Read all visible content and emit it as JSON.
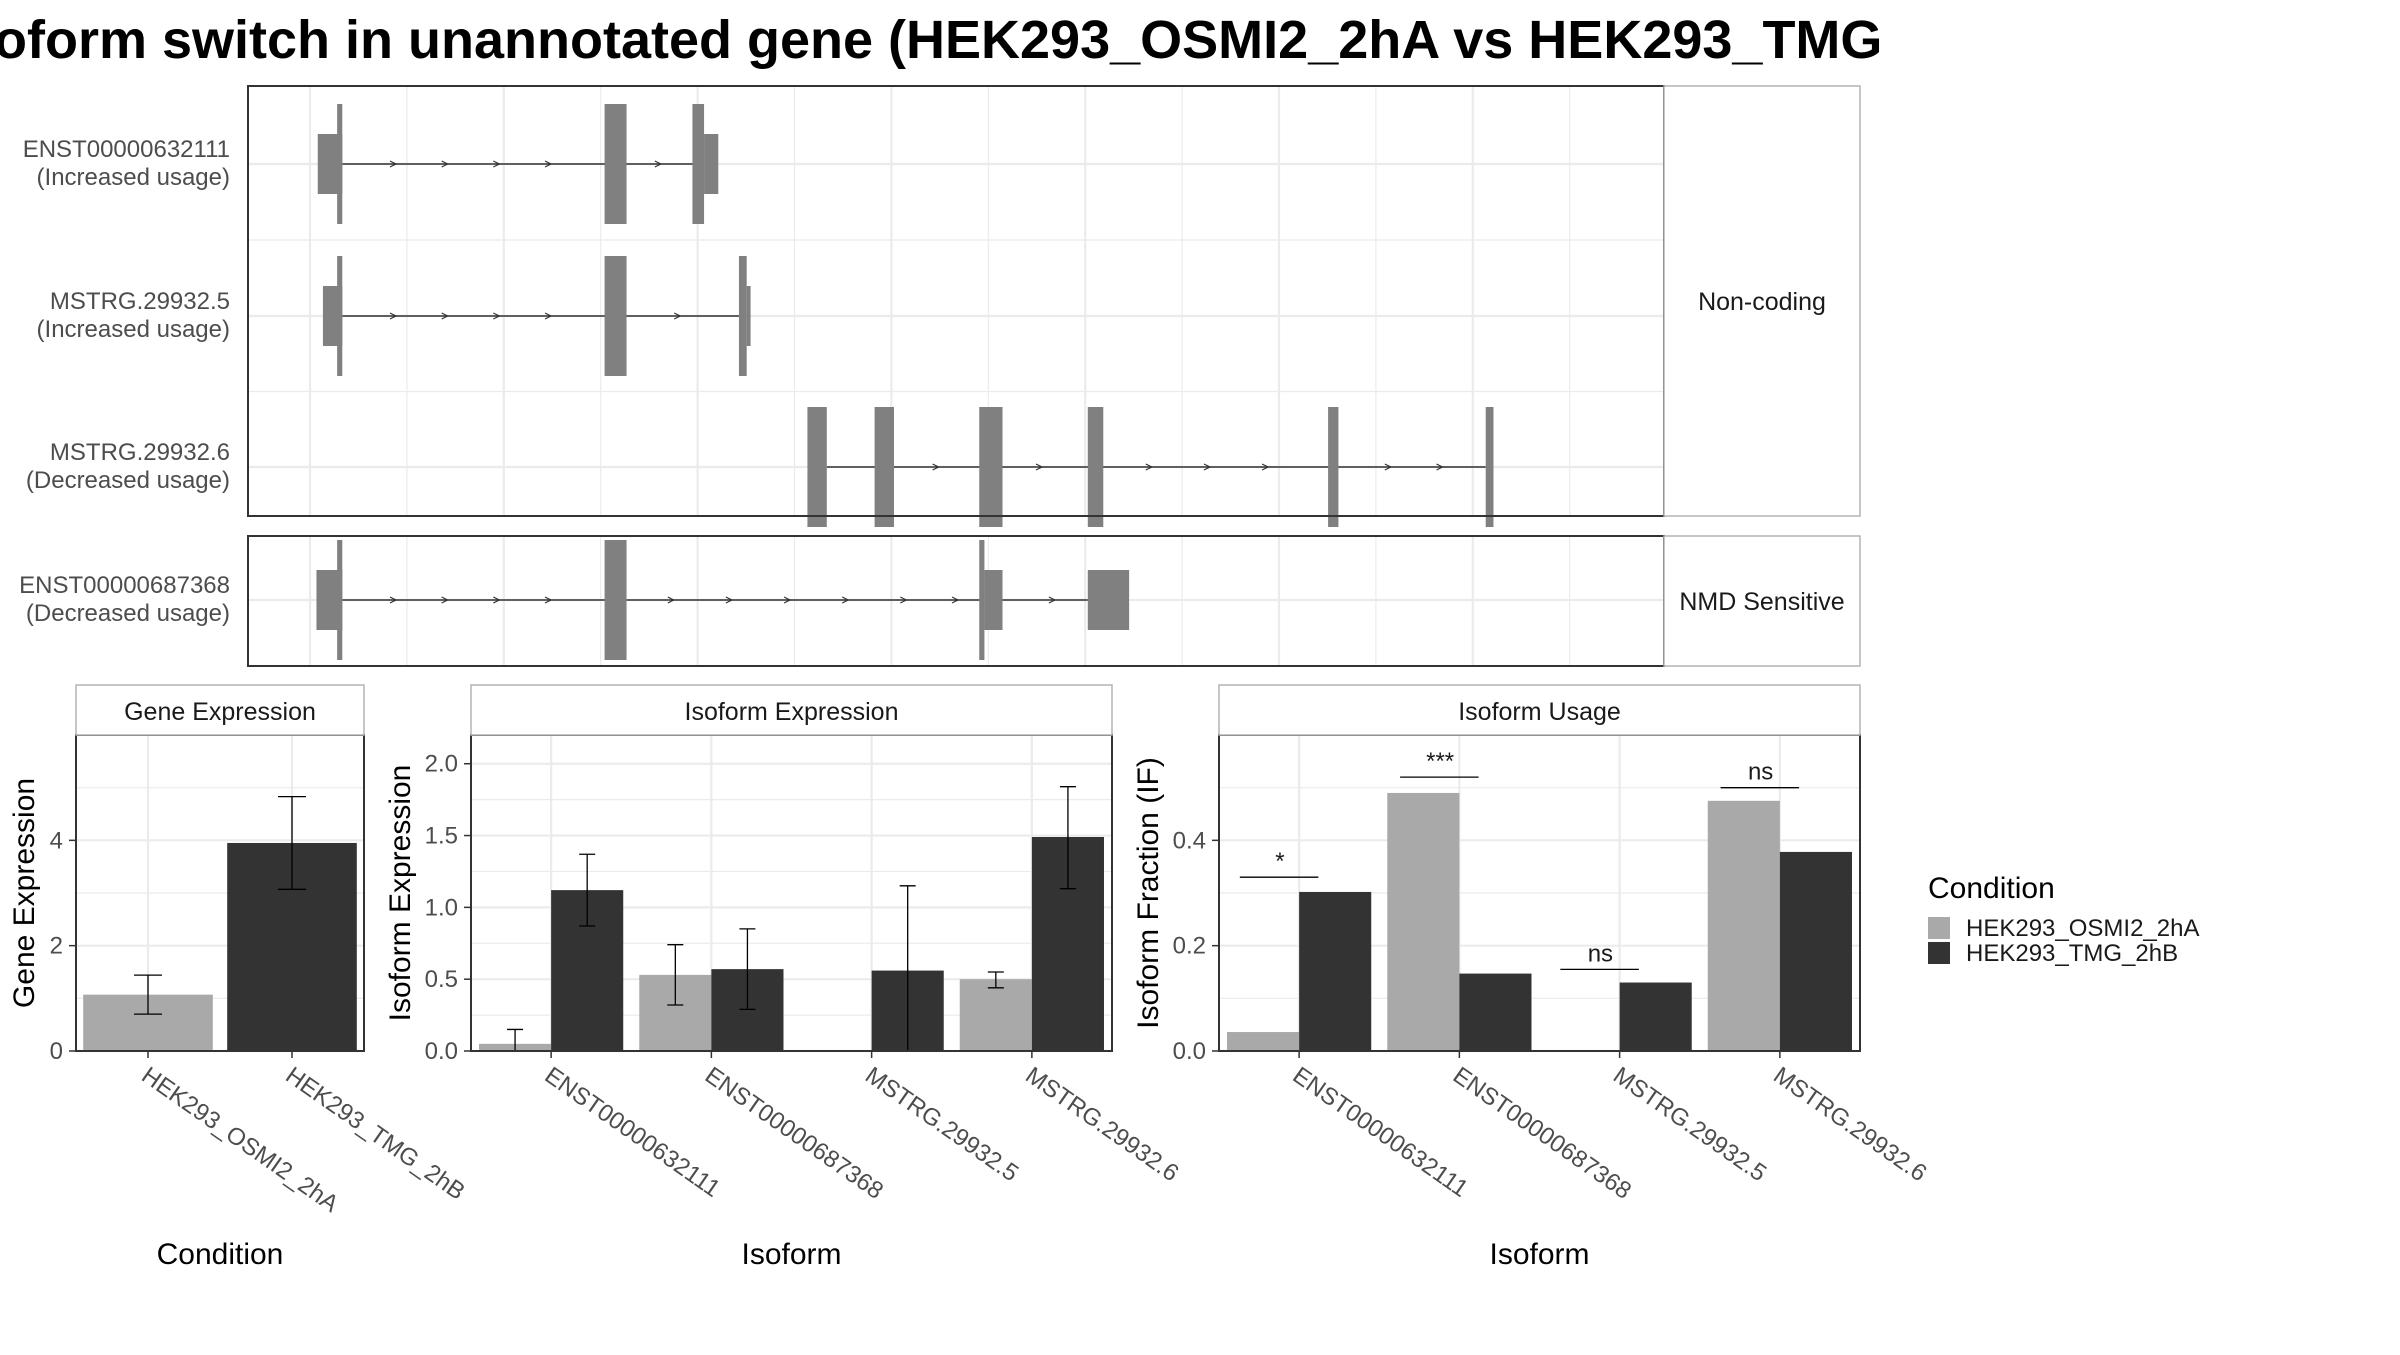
{
  "title": "oform switch in unannotated gene (HEK293_OSMI2_2hA vs HEK293_TMG",
  "colors": {
    "cond_a": "#A9A9A9",
    "cond_b": "#333333",
    "exon": "#808080",
    "grid": "#EBEBEB",
    "panel_border": "#333333",
    "strip_fill": "#FFFFFF",
    "text": "#1A1A1A",
    "axis_text": "#4D4D4D"
  },
  "structure": {
    "x_range": [
      0,
      100
    ],
    "groups": [
      {
        "label": "Non-coding",
        "transcripts": [
          {
            "name": "ENST00000632111",
            "usage": "(Increased usage)",
            "exons": [
              {
                "start": 0.6,
                "end": 2.5,
                "h": "utr"
              },
              {
                "start": 2.1,
                "end": 2.5,
                "h": "cds"
              },
              {
                "start": 22.8,
                "end": 24.5,
                "h": "cds"
              },
              {
                "start": 29.6,
                "end": 30.5,
                "h": "cds"
              },
              {
                "start": 30.5,
                "end": 31.6,
                "h": "utr"
              }
            ],
            "intron": [
              2.5,
              29.6
            ],
            "arrows": [
              6.5,
              10.5,
              14.5,
              18.5,
              27.0
            ]
          },
          {
            "name": "MSTRG.29932.5",
            "usage": "(Increased usage)",
            "exons": [
              {
                "start": 1.0,
                "end": 2.5,
                "h": "utr"
              },
              {
                "start": 2.1,
                "end": 2.5,
                "h": "cds"
              },
              {
                "start": 22.8,
                "end": 24.5,
                "h": "cds"
              },
              {
                "start": 33.2,
                "end": 33.8,
                "h": "cds"
              },
              {
                "start": 33.8,
                "end": 34.1,
                "h": "utr"
              }
            ],
            "intron": [
              2.5,
              33.2
            ],
            "arrows": [
              6.5,
              10.5,
              14.5,
              18.5,
              28.5
            ]
          },
          {
            "name": "MSTRG.29932.6",
            "usage": "(Decreased usage)",
            "exons": [
              {
                "start": 38.5,
                "end": 40.0,
                "h": "cds"
              },
              {
                "start": 43.7,
                "end": 45.2,
                "h": "cds"
              },
              {
                "start": 51.8,
                "end": 53.6,
                "h": "cds"
              },
              {
                "start": 60.2,
                "end": 61.4,
                "h": "cds"
              },
              {
                "start": 78.8,
                "end": 79.6,
                "h": "cds"
              },
              {
                "start": 91.0,
                "end": 91.6,
                "h": "cds"
              }
            ],
            "intron": [
              40.0,
              91.0
            ],
            "arrows": [
              48.5,
              56.5,
              65.0,
              69.5,
              74.0,
              83.5,
              87.5
            ]
          }
        ]
      },
      {
        "label": "NMD Sensitive",
        "transcripts": [
          {
            "name": "ENST00000687368",
            "usage": "(Decreased usage)",
            "exons": [
              {
                "start": 0.5,
                "end": 2.5,
                "h": "utr"
              },
              {
                "start": 2.1,
                "end": 2.5,
                "h": "cds"
              },
              {
                "start": 22.8,
                "end": 24.5,
                "h": "cds"
              },
              {
                "start": 51.8,
                "end": 52.2,
                "h": "cds"
              },
              {
                "start": 52.2,
                "end": 53.6,
                "h": "utr"
              },
              {
                "start": 60.2,
                "end": 63.4,
                "h": "utr"
              }
            ],
            "intron": [
              2.5,
              60.2
            ],
            "arrows": [
              6.5,
              10.5,
              14.5,
              18.5,
              28.0,
              32.5,
              37.0,
              41.5,
              46.0,
              50.0,
              57.5
            ]
          }
        ]
      }
    ]
  },
  "legend": {
    "title": "Condition",
    "items": [
      "HEK293_OSMI2_2hA",
      "HEK293_TMG_2hB"
    ]
  },
  "chart_data": [
    {
      "type": "bar",
      "title": "Gene Expression",
      "xlabel": "Condition",
      "ylabel": "Gene Expression",
      "ylim": [
        0,
        6
      ],
      "yticks": [
        0,
        2,
        4
      ],
      "categories": [
        "HEK293_OSMI2_2hA",
        "HEK293_TMG_2hB"
      ],
      "values": [
        1.07,
        3.95
      ],
      "errors": [
        [
          0.7,
          1.44
        ],
        [
          3.07,
          4.83
        ]
      ],
      "bar_conditions": [
        0,
        1
      ]
    },
    {
      "type": "bar",
      "title": "Isoform Expression",
      "xlabel": "Isoform",
      "ylabel": "Isoform Expression",
      "ylim": [
        0,
        2.2
      ],
      "yticks": [
        0.0,
        0.5,
        1.0,
        1.5,
        2.0
      ],
      "ytick_labels": [
        "0.0",
        "0.5",
        "1.0",
        "1.5",
        "2.0"
      ],
      "categories": [
        "ENST00000632111",
        "ENST00000687368",
        "MSTRG.29932.5",
        "MSTRG.29932.6"
      ],
      "series": [
        {
          "name": "HEK293_OSMI2_2hA",
          "values": [
            0.05,
            0.53,
            0.0,
            0.5
          ],
          "errors": [
            [
              0.0,
              0.15
            ],
            [
              0.32,
              0.74
            ],
            [
              0.0,
              0.0
            ],
            [
              0.44,
              0.55
            ]
          ]
        },
        {
          "name": "HEK293_TMG_2hB",
          "values": [
            1.12,
            0.57,
            0.56,
            1.49
          ],
          "errors": [
            [
              0.87,
              1.37
            ],
            [
              0.29,
              0.85
            ],
            [
              0.0,
              1.15
            ],
            [
              1.13,
              1.84
            ]
          ]
        }
      ]
    },
    {
      "type": "bar",
      "title": "Isoform Usage",
      "xlabel": "Isoform",
      "ylabel": "Isoform Fraction (IF)",
      "ylim": [
        0,
        0.6
      ],
      "yticks": [
        0.0,
        0.2,
        0.4
      ],
      "ytick_labels": [
        "0.0",
        "0.2",
        "0.4"
      ],
      "categories": [
        "ENST00000632111",
        "ENST00000687368",
        "MSTRG.29932.5",
        "MSTRG.29932.6"
      ],
      "series": [
        {
          "name": "HEK293_OSMI2_2hA",
          "values": [
            0.036,
            0.49,
            0.0,
            0.475
          ]
        },
        {
          "name": "HEK293_TMG_2hB",
          "values": [
            0.302,
            0.147,
            0.13,
            0.378
          ]
        }
      ],
      "significance": [
        "*",
        "***",
        "ns",
        "ns"
      ],
      "sig_levels": [
        0.33,
        0.52,
        0.155,
        0.5
      ]
    }
  ]
}
